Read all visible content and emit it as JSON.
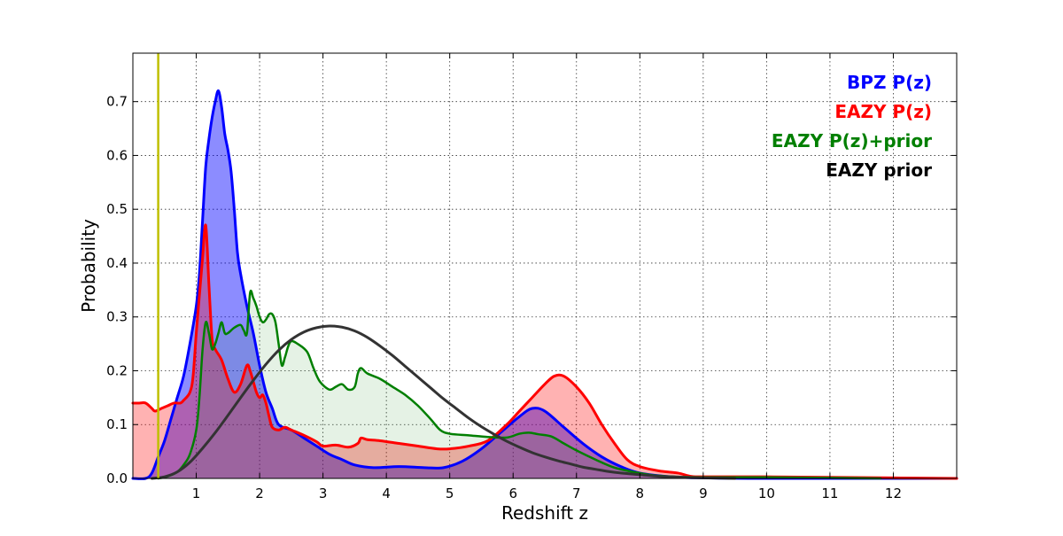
{
  "chart_data": {
    "type": "area",
    "xlabel": "Redshift z",
    "ylabel": "Probability",
    "xlim": [
      0,
      13
    ],
    "ylim": [
      0,
      0.79
    ],
    "xticks": [
      1,
      2,
      3,
      4,
      5,
      6,
      7,
      8,
      9,
      10,
      11,
      12
    ],
    "yticks": [
      0.0,
      0.1,
      0.2,
      0.3,
      0.4,
      0.5,
      0.6,
      0.7
    ],
    "ytick_labels": [
      "0.0",
      "0.1",
      "0.2",
      "0.3",
      "0.4",
      "0.5",
      "0.6",
      "0.7"
    ],
    "grid": true,
    "legend_position": "top-right",
    "vline": {
      "x": 0.4,
      "color": "#bfbf00"
    },
    "series": [
      {
        "name": "BPZ P(z)",
        "color": "#0000ff",
        "fill": "#0000ff",
        "fill_opacity": 0.45,
        "line_width": 3,
        "points": [
          [
            0.0,
            0.0
          ],
          [
            0.2,
            0.0
          ],
          [
            0.3,
            0.01
          ],
          [
            0.4,
            0.04
          ],
          [
            0.5,
            0.07
          ],
          [
            0.6,
            0.11
          ],
          [
            0.7,
            0.15
          ],
          [
            0.8,
            0.19
          ],
          [
            0.9,
            0.25
          ],
          [
            1.0,
            0.32
          ],
          [
            1.05,
            0.38
          ],
          [
            1.1,
            0.48
          ],
          [
            1.15,
            0.58
          ],
          [
            1.2,
            0.63
          ],
          [
            1.25,
            0.67
          ],
          [
            1.3,
            0.7
          ],
          [
            1.35,
            0.72
          ],
          [
            1.4,
            0.69
          ],
          [
            1.45,
            0.64
          ],
          [
            1.5,
            0.61
          ],
          [
            1.55,
            0.57
          ],
          [
            1.6,
            0.5
          ],
          [
            1.65,
            0.42
          ],
          [
            1.7,
            0.38
          ],
          [
            1.8,
            0.32
          ],
          [
            1.9,
            0.27
          ],
          [
            2.0,
            0.21
          ],
          [
            2.1,
            0.16
          ],
          [
            2.2,
            0.13
          ],
          [
            2.3,
            0.1
          ],
          [
            2.5,
            0.09
          ],
          [
            2.7,
            0.075
          ],
          [
            2.9,
            0.06
          ],
          [
            3.1,
            0.045
          ],
          [
            3.3,
            0.035
          ],
          [
            3.5,
            0.025
          ],
          [
            3.8,
            0.02
          ],
          [
            4.2,
            0.022
          ],
          [
            4.6,
            0.02
          ],
          [
            4.9,
            0.02
          ],
          [
            5.2,
            0.032
          ],
          [
            5.5,
            0.055
          ],
          [
            5.8,
            0.085
          ],
          [
            6.1,
            0.115
          ],
          [
            6.3,
            0.13
          ],
          [
            6.5,
            0.125
          ],
          [
            6.8,
            0.095
          ],
          [
            7.1,
            0.065
          ],
          [
            7.4,
            0.04
          ],
          [
            7.7,
            0.022
          ],
          [
            8.0,
            0.01
          ],
          [
            8.5,
            0.003
          ],
          [
            9.0,
            0.001
          ],
          [
            10.0,
            0.0
          ],
          [
            13.0,
            0.0
          ]
        ]
      },
      {
        "name": "EAZY P(z)",
        "color": "#ff0000",
        "fill": "#ff0000",
        "fill_opacity": 0.3,
        "line_width": 3,
        "points": [
          [
            0.0,
            0.14
          ],
          [
            0.1,
            0.14
          ],
          [
            0.2,
            0.14
          ],
          [
            0.3,
            0.13
          ],
          [
            0.35,
            0.125
          ],
          [
            0.45,
            0.13
          ],
          [
            0.55,
            0.135
          ],
          [
            0.65,
            0.14
          ],
          [
            0.75,
            0.14
          ],
          [
            0.8,
            0.145
          ],
          [
            0.9,
            0.16
          ],
          [
            0.95,
            0.19
          ],
          [
            1.0,
            0.27
          ],
          [
            1.05,
            0.34
          ],
          [
            1.1,
            0.41
          ],
          [
            1.15,
            0.47
          ],
          [
            1.2,
            0.36
          ],
          [
            1.25,
            0.26
          ],
          [
            1.3,
            0.24
          ],
          [
            1.4,
            0.22
          ],
          [
            1.5,
            0.185
          ],
          [
            1.6,
            0.16
          ],
          [
            1.7,
            0.175
          ],
          [
            1.8,
            0.21
          ],
          [
            1.85,
            0.2
          ],
          [
            1.9,
            0.18
          ],
          [
            1.95,
            0.16
          ],
          [
            2.0,
            0.15
          ],
          [
            2.05,
            0.155
          ],
          [
            2.1,
            0.14
          ],
          [
            2.15,
            0.115
          ],
          [
            2.2,
            0.095
          ],
          [
            2.3,
            0.09
          ],
          [
            2.4,
            0.095
          ],
          [
            2.5,
            0.09
          ],
          [
            2.7,
            0.08
          ],
          [
            2.9,
            0.068
          ],
          [
            3.0,
            0.06
          ],
          [
            3.2,
            0.062
          ],
          [
            3.4,
            0.058
          ],
          [
            3.55,
            0.065
          ],
          [
            3.6,
            0.075
          ],
          [
            3.7,
            0.072
          ],
          [
            3.9,
            0.07
          ],
          [
            4.2,
            0.065
          ],
          [
            4.5,
            0.06
          ],
          [
            4.8,
            0.055
          ],
          [
            5.0,
            0.055
          ],
          [
            5.3,
            0.06
          ],
          [
            5.6,
            0.07
          ],
          [
            5.9,
            0.1
          ],
          [
            6.1,
            0.125
          ],
          [
            6.3,
            0.15
          ],
          [
            6.5,
            0.175
          ],
          [
            6.65,
            0.19
          ],
          [
            6.8,
            0.19
          ],
          [
            7.0,
            0.17
          ],
          [
            7.2,
            0.14
          ],
          [
            7.4,
            0.1
          ],
          [
            7.6,
            0.065
          ],
          [
            7.8,
            0.035
          ],
          [
            8.0,
            0.022
          ],
          [
            8.3,
            0.014
          ],
          [
            8.6,
            0.01
          ],
          [
            8.8,
            0.004
          ],
          [
            9.0,
            0.003
          ],
          [
            10.0,
            0.003
          ],
          [
            11.0,
            0.002
          ],
          [
            12.0,
            0.001
          ],
          [
            13.0,
            0.0
          ]
        ]
      },
      {
        "name": "EAZY P(z)+prior",
        "color": "#007f00",
        "fill": "#007f00",
        "fill_opacity": 0.1,
        "line_width": 2.5,
        "points": [
          [
            0.4,
            0.0
          ],
          [
            0.5,
            0.002
          ],
          [
            0.6,
            0.006
          ],
          [
            0.7,
            0.012
          ],
          [
            0.8,
            0.025
          ],
          [
            0.9,
            0.045
          ],
          [
            1.0,
            0.09
          ],
          [
            1.05,
            0.15
          ],
          [
            1.1,
            0.24
          ],
          [
            1.15,
            0.29
          ],
          [
            1.2,
            0.27
          ],
          [
            1.25,
            0.24
          ],
          [
            1.3,
            0.25
          ],
          [
            1.35,
            0.27
          ],
          [
            1.4,
            0.29
          ],
          [
            1.45,
            0.27
          ],
          [
            1.5,
            0.27
          ],
          [
            1.6,
            0.28
          ],
          [
            1.7,
            0.285
          ],
          [
            1.75,
            0.275
          ],
          [
            1.8,
            0.27
          ],
          [
            1.85,
            0.345
          ],
          [
            1.9,
            0.335
          ],
          [
            1.95,
            0.32
          ],
          [
            2.0,
            0.3
          ],
          [
            2.05,
            0.29
          ],
          [
            2.1,
            0.295
          ],
          [
            2.15,
            0.305
          ],
          [
            2.2,
            0.305
          ],
          [
            2.25,
            0.29
          ],
          [
            2.3,
            0.25
          ],
          [
            2.35,
            0.21
          ],
          [
            2.4,
            0.225
          ],
          [
            2.45,
            0.245
          ],
          [
            2.5,
            0.255
          ],
          [
            2.6,
            0.25
          ],
          [
            2.75,
            0.235
          ],
          [
            2.85,
            0.205
          ],
          [
            2.95,
            0.18
          ],
          [
            3.1,
            0.165
          ],
          [
            3.2,
            0.17
          ],
          [
            3.3,
            0.175
          ],
          [
            3.4,
            0.165
          ],
          [
            3.5,
            0.17
          ],
          [
            3.55,
            0.195
          ],
          [
            3.6,
            0.205
          ],
          [
            3.7,
            0.195
          ],
          [
            3.9,
            0.185
          ],
          [
            4.1,
            0.17
          ],
          [
            4.3,
            0.155
          ],
          [
            4.5,
            0.135
          ],
          [
            4.7,
            0.11
          ],
          [
            4.85,
            0.09
          ],
          [
            5.0,
            0.083
          ],
          [
            5.3,
            0.08
          ],
          [
            5.6,
            0.077
          ],
          [
            5.9,
            0.076
          ],
          [
            6.1,
            0.083
          ],
          [
            6.25,
            0.085
          ],
          [
            6.4,
            0.082
          ],
          [
            6.6,
            0.078
          ],
          [
            6.8,
            0.065
          ],
          [
            7.0,
            0.052
          ],
          [
            7.3,
            0.035
          ],
          [
            7.6,
            0.02
          ],
          [
            7.9,
            0.012
          ],
          [
            8.2,
            0.006
          ],
          [
            8.6,
            0.003
          ],
          [
            9.0,
            0.002
          ],
          [
            10.0,
            0.002
          ],
          [
            11.0,
            0.001
          ],
          [
            11.8,
            0.0
          ]
        ]
      },
      {
        "name": "EAZY prior",
        "color": "#333333",
        "fill": "none",
        "fill_opacity": 0,
        "line_width": 3,
        "points": [
          [
            0.3,
            0.0
          ],
          [
            0.5,
            0.003
          ],
          [
            0.7,
            0.012
          ],
          [
            0.9,
            0.03
          ],
          [
            1.1,
            0.056
          ],
          [
            1.3,
            0.085
          ],
          [
            1.5,
            0.117
          ],
          [
            1.7,
            0.15
          ],
          [
            1.9,
            0.182
          ],
          [
            2.1,
            0.212
          ],
          [
            2.3,
            0.238
          ],
          [
            2.5,
            0.258
          ],
          [
            2.7,
            0.272
          ],
          [
            2.9,
            0.28
          ],
          [
            3.1,
            0.283
          ],
          [
            3.3,
            0.281
          ],
          [
            3.5,
            0.274
          ],
          [
            3.7,
            0.262
          ],
          [
            3.9,
            0.246
          ],
          [
            4.1,
            0.228
          ],
          [
            4.3,
            0.208
          ],
          [
            4.5,
            0.188
          ],
          [
            4.7,
            0.168
          ],
          [
            4.9,
            0.148
          ],
          [
            5.1,
            0.13
          ],
          [
            5.3,
            0.112
          ],
          [
            5.5,
            0.096
          ],
          [
            5.7,
            0.082
          ],
          [
            5.9,
            0.069
          ],
          [
            6.1,
            0.058
          ],
          [
            6.3,
            0.048
          ],
          [
            6.5,
            0.04
          ],
          [
            6.7,
            0.033
          ],
          [
            6.9,
            0.027
          ],
          [
            7.1,
            0.021
          ],
          [
            7.3,
            0.017
          ],
          [
            7.5,
            0.013
          ],
          [
            7.7,
            0.01
          ],
          [
            8.0,
            0.007
          ],
          [
            8.3,
            0.004
          ],
          [
            8.7,
            0.002
          ],
          [
            9.0,
            0.001
          ],
          [
            9.5,
            0.0
          ]
        ]
      }
    ],
    "legend": [
      {
        "label": "BPZ P(z)",
        "color": "#0000ff"
      },
      {
        "label": "EAZY P(z)",
        "color": "#ff0000"
      },
      {
        "label": "EAZY P(z)+prior",
        "color": "#007f00"
      },
      {
        "label": "EAZY prior",
        "color": "#000000"
      }
    ]
  }
}
